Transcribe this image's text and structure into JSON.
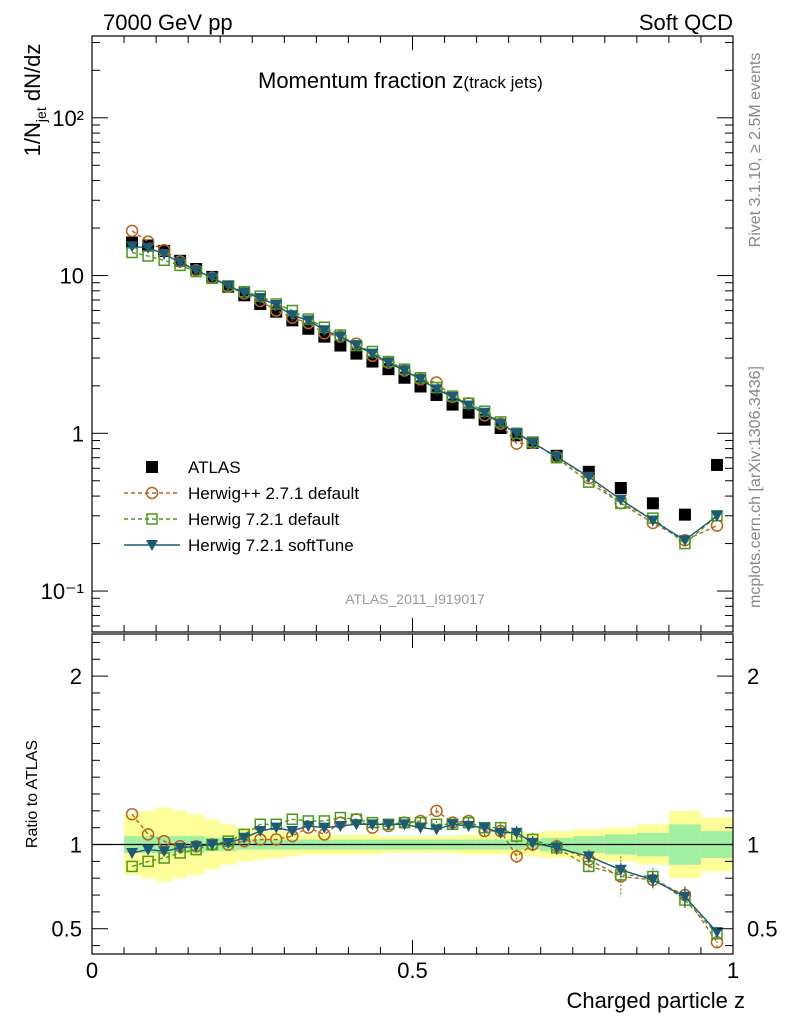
{
  "header": {
    "energy": "7000 GeV pp",
    "process": "Soft QCD"
  },
  "side": {
    "rivet": "Rivet 3.1.10, ≥ 2.5M events",
    "mcplots": "mcplots.cern.ch [arXiv:1306.3436]"
  },
  "colors": {
    "atlas": "#000000",
    "herwigpp": "#b8651b",
    "herwig721": "#4a9a1a",
    "softtune": "#1d5a78",
    "band_inner": "#a0f0a0",
    "band_outer": "#ffff99"
  },
  "chart_data": [
    {
      "type": "scatter",
      "panel": "main",
      "title_main": "Momentum fraction z",
      "title_sub": "(track jets)",
      "watermark": "ATLAS_2011_I919017",
      "ylabel_main": "1/N",
      "ylabel_sub": "jet",
      "ylabel_tail": " dN/dz",
      "yscale": "log",
      "xlim": [
        0,
        1
      ],
      "ylim": [
        0.055,
        330
      ],
      "y_tick_labels": [
        "10⁻¹",
        "1",
        "10",
        "10²"
      ],
      "y_tick_values": [
        0.1,
        1,
        10,
        100
      ],
      "legend_position": "lower-left",
      "x": [
        0.0625,
        0.0875,
        0.1125,
        0.1375,
        0.1625,
        0.1875,
        0.2125,
        0.2375,
        0.2625,
        0.2875,
        0.3125,
        0.3375,
        0.3625,
        0.3875,
        0.4125,
        0.4375,
        0.4625,
        0.4875,
        0.5125,
        0.5375,
        0.5625,
        0.5875,
        0.6125,
        0.6375,
        0.6625,
        0.6875,
        0.725,
        0.775,
        0.825,
        0.875,
        0.925,
        0.975
      ],
      "series": [
        {
          "name": "ATLAS",
          "key": "atlas",
          "style": "data",
          "values": [
            16.2,
            15.5,
            14.3,
            12.4,
            11.0,
            9.8,
            8.5,
            7.5,
            6.6,
            5.9,
            5.2,
            4.6,
            4.1,
            3.6,
            3.2,
            2.85,
            2.55,
            2.25,
            1.98,
            1.75,
            1.52,
            1.35,
            1.22,
            1.08,
            0.97,
            0.87,
            0.72,
            0.57,
            0.45,
            0.36,
            0.305,
            0.63
          ]
        },
        {
          "name": "Herwig++ 2.7.1 default",
          "key": "herwigpp",
          "style": "circle",
          "values": [
            19.2,
            16.4,
            14.5,
            12.3,
            10.8,
            9.7,
            8.5,
            7.7,
            6.9,
            6.0,
            5.4,
            5.0,
            4.3,
            4.1,
            3.7,
            3.1,
            2.8,
            2.5,
            2.2,
            2.1,
            1.7,
            1.55,
            1.3,
            1.15,
            0.86,
            0.87,
            0.71,
            0.52,
            0.36,
            0.27,
            0.21,
            0.26
          ]
        },
        {
          "name": "Herwig 7.2.1 default",
          "key": "herwig721",
          "style": "square",
          "values": [
            14.0,
            13.3,
            12.5,
            11.6,
            10.6,
            9.6,
            8.6,
            7.9,
            7.4,
            6.6,
            6.0,
            5.3,
            4.7,
            4.2,
            3.6,
            3.3,
            2.85,
            2.55,
            2.25,
            1.95,
            1.72,
            1.55,
            1.38,
            1.18,
            1.0,
            0.88,
            0.7,
            0.49,
            0.36,
            0.29,
            0.2,
            0.3
          ]
        },
        {
          "name": "Herwig 7.2.1 softTune",
          "key": "softtune",
          "style": "triangle",
          "values": [
            15.3,
            15.0,
            13.7,
            12.1,
            10.8,
            9.7,
            8.6,
            7.8,
            7.2,
            6.5,
            5.6,
            5.2,
            4.5,
            4.1,
            3.6,
            3.2,
            2.8,
            2.5,
            2.2,
            1.9,
            1.7,
            1.5,
            1.35,
            1.15,
            1.0,
            0.87,
            0.71,
            0.53,
            0.38,
            0.28,
            0.21,
            0.3
          ]
        }
      ]
    },
    {
      "type": "scatter",
      "panel": "ratio",
      "ylabel": "Ratio to ATLAS",
      "xlabel": "Charged particle z",
      "xlim": [
        0,
        1
      ],
      "ylim": [
        0.35,
        2.25
      ],
      "x_tick_labels": [
        "0",
        "0.5",
        "1"
      ],
      "x_tick_values": [
        0,
        0.5,
        1
      ],
      "y_tick_labels": [
        "0.5",
        "1",
        "2"
      ],
      "y_tick_values": [
        0.5,
        1,
        2
      ],
      "x": [
        0.0625,
        0.0875,
        0.1125,
        0.1375,
        0.1625,
        0.1875,
        0.2125,
        0.2375,
        0.2625,
        0.2875,
        0.3125,
        0.3375,
        0.3625,
        0.3875,
        0.4125,
        0.4375,
        0.4625,
        0.4875,
        0.5125,
        0.5375,
        0.5625,
        0.5875,
        0.6125,
        0.6375,
        0.6625,
        0.6875,
        0.725,
        0.775,
        0.825,
        0.875,
        0.925,
        0.975
      ],
      "bin_edges": [
        0.05,
        0.075,
        0.1,
        0.125,
        0.15,
        0.175,
        0.2,
        0.225,
        0.25,
        0.275,
        0.3,
        0.325,
        0.35,
        0.375,
        0.4,
        0.425,
        0.45,
        0.475,
        0.5,
        0.525,
        0.55,
        0.575,
        0.6,
        0.625,
        0.65,
        0.675,
        0.7,
        0.75,
        0.8,
        0.85,
        0.9,
        0.95,
        1.0
      ],
      "band_inner": [
        0.05,
        0.05,
        0.05,
        0.05,
        0.05,
        0.04,
        0.04,
        0.03,
        0.03,
        0.03,
        0.03,
        0.03,
        0.03,
        0.03,
        0.03,
        0.03,
        0.03,
        0.03,
        0.03,
        0.03,
        0.03,
        0.03,
        0.03,
        0.03,
        0.03,
        0.03,
        0.04,
        0.05,
        0.06,
        0.07,
        0.12,
        0.08
      ],
      "band_outer": [
        0.18,
        0.2,
        0.22,
        0.2,
        0.18,
        0.15,
        0.12,
        0.1,
        0.09,
        0.08,
        0.07,
        0.06,
        0.06,
        0.06,
        0.06,
        0.06,
        0.05,
        0.05,
        0.05,
        0.05,
        0.05,
        0.06,
        0.06,
        0.06,
        0.07,
        0.07,
        0.08,
        0.09,
        0.1,
        0.12,
        0.2,
        0.16
      ],
      "series": [
        {
          "name": "Herwig++ 2.7.1 default",
          "key": "herwigpp",
          "style": "circle",
          "values": [
            1.18,
            1.06,
            1.02,
            0.99,
            0.99,
            1.0,
            1.0,
            1.02,
            1.03,
            1.03,
            1.05,
            1.1,
            1.06,
            1.13,
            1.15,
            1.1,
            1.11,
            1.13,
            1.14,
            1.2,
            1.13,
            1.14,
            1.08,
            1.08,
            0.93,
            1.0,
            0.99,
            0.91,
            0.81,
            0.79,
            0.7,
            0.42
          ],
          "errors": [
            0.01,
            0.01,
            0.01,
            0.01,
            0.01,
            0.01,
            0.01,
            0.01,
            0.01,
            0.01,
            0.01,
            0.01,
            0.01,
            0.01,
            0.01,
            0.01,
            0.01,
            0.02,
            0.02,
            0.02,
            0.02,
            0.02,
            0.03,
            0.03,
            0.04,
            0.04,
            0.04,
            0.06,
            0.12,
            0.05,
            0.05,
            0.03
          ]
        },
        {
          "name": "Herwig 7.2.1 default",
          "key": "herwig721",
          "style": "square",
          "values": [
            0.87,
            0.9,
            0.92,
            0.95,
            0.97,
            1.0,
            1.02,
            1.06,
            1.12,
            1.12,
            1.15,
            1.14,
            1.14,
            1.16,
            1.15,
            1.13,
            1.12,
            1.13,
            1.13,
            1.12,
            1.12,
            1.13,
            1.1,
            1.1,
            1.05,
            1.03,
            0.98,
            0.87,
            0.82,
            0.81,
            0.67,
            0.47
          ],
          "errors": [
            0.01,
            0.01,
            0.01,
            0.01,
            0.01,
            0.01,
            0.01,
            0.01,
            0.01,
            0.01,
            0.01,
            0.01,
            0.01,
            0.01,
            0.01,
            0.01,
            0.01,
            0.02,
            0.02,
            0.02,
            0.02,
            0.02,
            0.03,
            0.03,
            0.04,
            0.04,
            0.04,
            0.03,
            0.04,
            0.05,
            0.06,
            0.03
          ]
        },
        {
          "name": "Herwig 7.2.1 softTune",
          "key": "softtune",
          "style": "triangle",
          "values": [
            0.95,
            0.97,
            0.96,
            0.98,
            0.99,
            1.0,
            1.01,
            1.04,
            1.08,
            1.1,
            1.08,
            1.11,
            1.1,
            1.11,
            1.12,
            1.12,
            1.12,
            1.12,
            1.1,
            1.09,
            1.12,
            1.11,
            1.1,
            1.07,
            1.07,
            1.01,
            0.98,
            0.93,
            0.85,
            0.79,
            0.69,
            0.48
          ],
          "errors": [
            0.01,
            0.01,
            0.01,
            0.01,
            0.01,
            0.01,
            0.01,
            0.01,
            0.01,
            0.01,
            0.01,
            0.01,
            0.01,
            0.01,
            0.01,
            0.01,
            0.01,
            0.02,
            0.02,
            0.02,
            0.02,
            0.02,
            0.03,
            0.03,
            0.04,
            0.04,
            0.04,
            0.03,
            0.04,
            0.05,
            0.06,
            0.03
          ]
        }
      ]
    }
  ]
}
